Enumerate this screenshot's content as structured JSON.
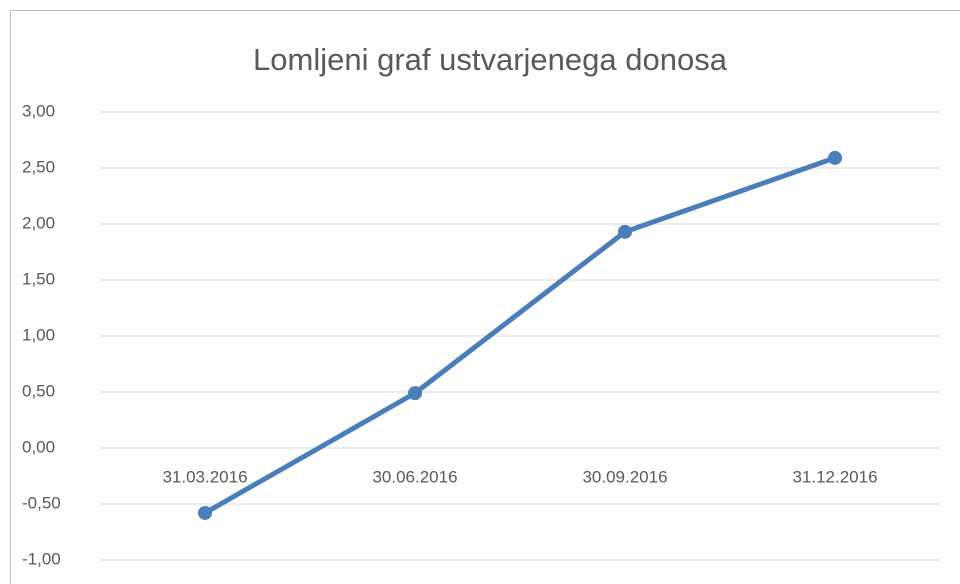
{
  "chart_data": {
    "type": "line",
    "title": "Lomljeni graf ustvarjenega donosa",
    "categories": [
      "31.03.2016",
      "30.06.2016",
      "30.09.2016",
      "31.12.2016"
    ],
    "series": [
      {
        "color": "#4a7ebb",
        "values": [
          -0.58,
          0.49,
          1.93,
          2.59
        ]
      }
    ],
    "ylim": [
      -1,
      3
    ],
    "yticks": [
      {
        "value": -1,
        "label": "-1,00"
      },
      {
        "value": -0.5,
        "label": "-0,50"
      },
      {
        "value": 0,
        "label": "0,00"
      },
      {
        "value": 0.5,
        "label": "0,50"
      },
      {
        "value": 1,
        "label": "1,00"
      },
      {
        "value": 1.5,
        "label": "1,50"
      },
      {
        "value": 2,
        "label": "2,00"
      },
      {
        "value": 2.5,
        "label": "2,50"
      },
      {
        "value": 3,
        "label": "3,00"
      }
    ],
    "grid": true
  }
}
